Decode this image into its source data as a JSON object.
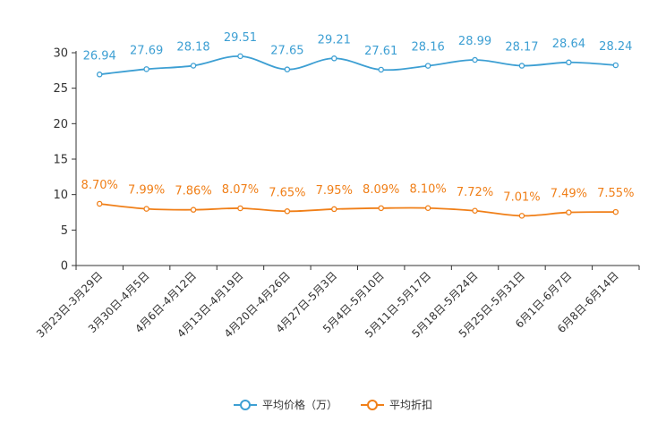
{
  "chart_data": {
    "type": "line",
    "categories": [
      "3月23日-3月29日",
      "3月30日-4月5日",
      "4月6日-4月12日",
      "4月13日-4月19日",
      "4月20日-4月26日",
      "4月27日-5月3日",
      "5月4日-5月10日",
      "5月11日-5月17日",
      "5月18日-5月24日",
      "5月25日-5月31日",
      "6月1日-6月7日",
      "6月8日-6月14日"
    ],
    "ylim": [
      0,
      30
    ],
    "yticks": [
      0,
      5,
      10,
      15,
      20,
      25,
      30
    ],
    "series": [
      {
        "name": "平均价格（万）",
        "color": "#3d9fd3",
        "values": [
          26.94,
          27.69,
          28.18,
          29.51,
          27.65,
          29.21,
          27.61,
          28.16,
          28.99,
          28.17,
          28.64,
          28.24
        ],
        "labels": [
          "26.94",
          "27.69",
          "28.18",
          "29.51",
          "27.65",
          "29.21",
          "27.61",
          "28.16",
          "28.99",
          "28.17",
          "28.64",
          "28.24"
        ]
      },
      {
        "name": "平均折扣",
        "color": "#f07f18",
        "values": [
          8.7,
          7.99,
          7.86,
          8.07,
          7.65,
          7.95,
          8.09,
          8.1,
          7.72,
          7.01,
          7.49,
          7.55
        ],
        "labels": [
          "8.70%",
          "7.99%",
          "7.86%",
          "8.07%",
          "7.65%",
          "7.95%",
          "8.09%",
          "8.10%",
          "7.72%",
          "7.01%",
          "7.49%",
          "7.55%"
        ]
      }
    ],
    "title": "",
    "xlabel": "",
    "ylabel": "",
    "legend_position": "bottom-center"
  }
}
